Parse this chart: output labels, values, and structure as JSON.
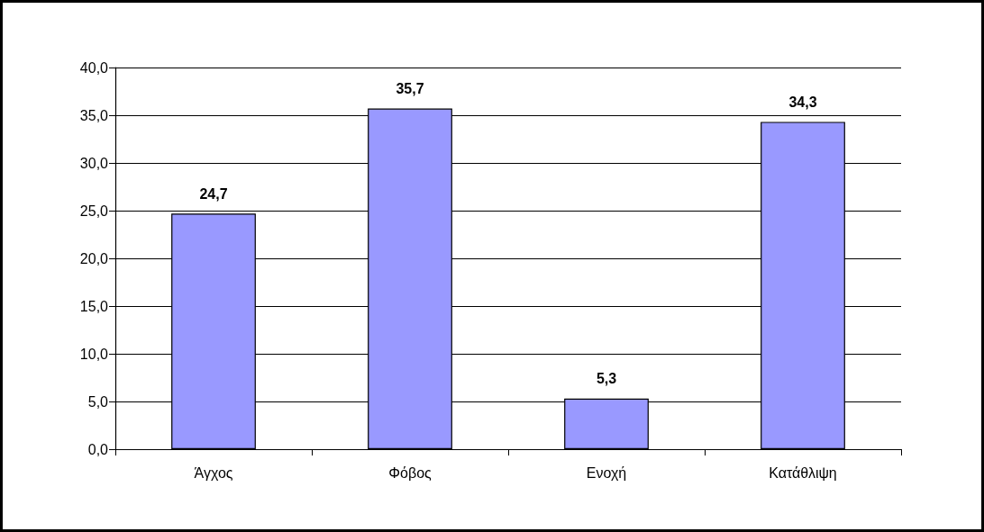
{
  "chart_data": {
    "type": "bar",
    "categories": [
      "Άγχος",
      "Φόβος",
      "Ενοχή",
      "Κατάθλιψη"
    ],
    "values": [
      24.7,
      35.7,
      5.3,
      34.3
    ],
    "value_labels": [
      "24,7",
      "35,7",
      "5,3",
      "34,3"
    ],
    "color": "#9999ff",
    "ylim": [
      0,
      40
    ],
    "yticks": [
      {
        "value": 0,
        "label": "0,0"
      },
      {
        "value": 5,
        "label": "5,0"
      },
      {
        "value": 10,
        "label": "10,0"
      },
      {
        "value": 15,
        "label": "15,0"
      },
      {
        "value": 20,
        "label": "20,0"
      },
      {
        "value": 25,
        "label": "25,0"
      },
      {
        "value": 30,
        "label": "30,0"
      },
      {
        "value": 35,
        "label": "35,0"
      },
      {
        "value": 40,
        "label": "40,0"
      }
    ],
    "grid": "y"
  }
}
